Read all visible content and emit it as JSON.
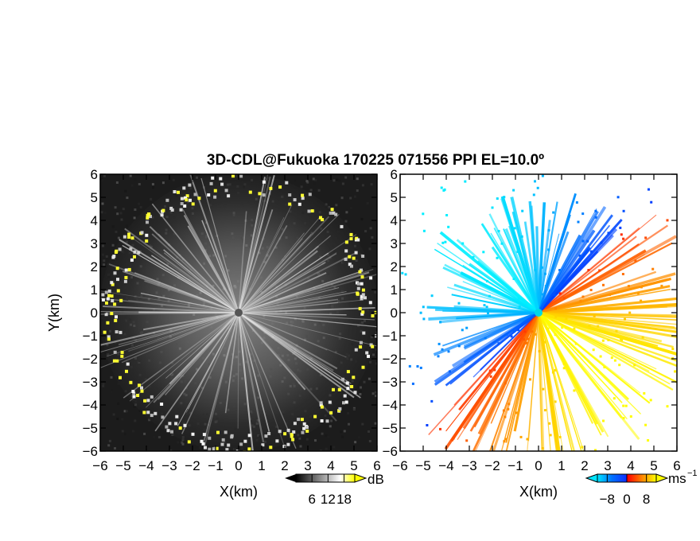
{
  "title": "3D-CDL@Fukuoka 170225 071556 PPI EL=10.0º",
  "chart_data": [
    {
      "type": "heatmap",
      "panel": "reflectivity",
      "xlabel": "X(km)",
      "ylabel": "Y(km)",
      "xlim": [
        -6,
        6
      ],
      "ylim": [
        -6,
        6
      ],
      "xticks": [
        "−6",
        "−5",
        "−4",
        "−3",
        "−2",
        "−1",
        "0",
        "1",
        "2",
        "3",
        "4",
        "5",
        "6"
      ],
      "yticks": [
        "−6",
        "−5",
        "−4",
        "−3",
        "−2",
        "−1",
        "0",
        "1",
        "2",
        "3",
        "4",
        "5",
        "6"
      ],
      "colorbar": {
        "unit": "dB",
        "tick_labels": [
          "6",
          "12",
          "18"
        ],
        "ticks": [
          6,
          12,
          18
        ],
        "range": [
          0,
          22
        ],
        "colors": [
          "#000000",
          "#ffffff",
          "#ffff00"
        ]
      },
      "background_color": "#1a1a1a",
      "ring_radius_km": 5.6,
      "ring_color": "#ffff33"
    },
    {
      "type": "heatmap",
      "panel": "doppler_velocity",
      "xlabel": "X(km)",
      "xlim": [
        -6,
        6
      ],
      "ylim": [
        -6,
        6
      ],
      "xticks": [
        "−6",
        "−5",
        "−4",
        "−3",
        "−2",
        "−1",
        "0",
        "1",
        "2",
        "3",
        "4",
        "5",
        "6"
      ],
      "yticks": [
        "−6",
        "−5",
        "−4",
        "−3",
        "−2",
        "−1",
        "0",
        "1",
        "2",
        "3",
        "4",
        "5",
        "6"
      ],
      "colorbar": {
        "unit": "ms",
        "unit_exponent": "−1",
        "tick_labels": [
          "−8",
          "0",
          "8"
        ],
        "ticks": [
          -8,
          0,
          8
        ],
        "range": [
          -12,
          12
        ],
        "colors": [
          "#00e5ff",
          "#0040ff",
          "#ff0000",
          "#ff8000",
          "#ffff00"
        ]
      },
      "flow_direction": "from upper-left toward lower-right"
    }
  ]
}
